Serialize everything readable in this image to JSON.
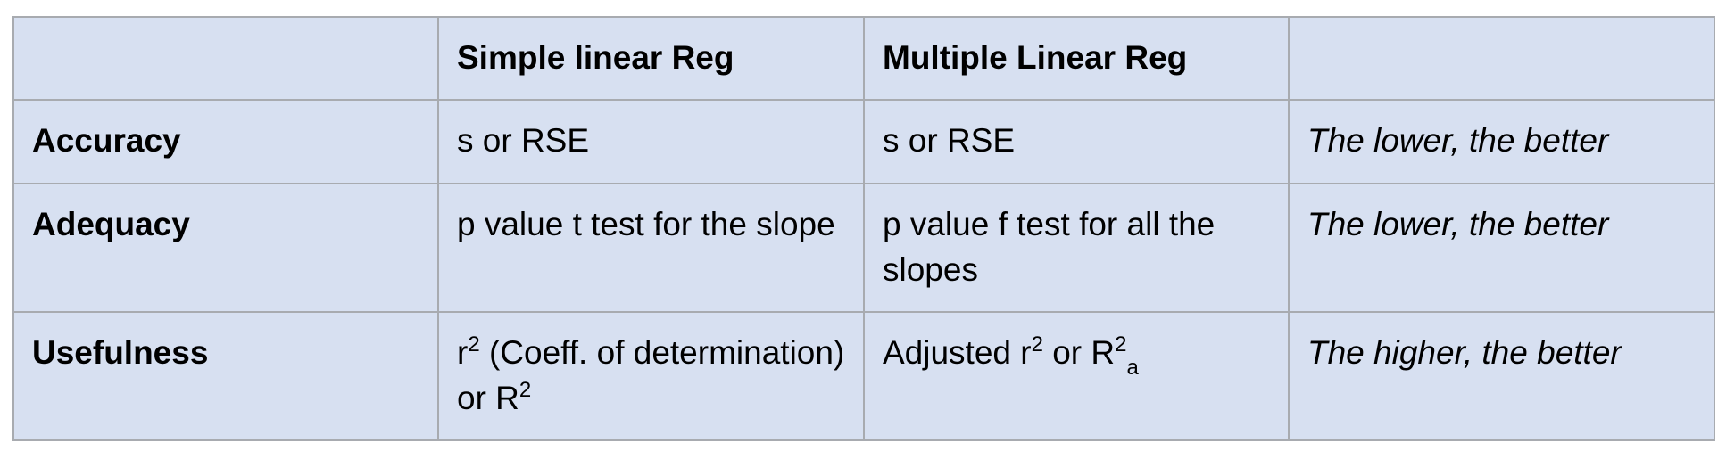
{
  "table": {
    "header": [
      "Simple linear Reg",
      "Multiple Linear Reg"
    ],
    "rows": [
      {
        "label": "Accuracy",
        "simple": [
          "s or RSE"
        ],
        "multiple": [
          "s or RSE"
        ],
        "note": "The lower, the better"
      },
      {
        "label": "Adequacy",
        "simple": [
          "p value t test for the slope"
        ],
        "multiple": [
          "p value f test for all the slopes"
        ],
        "note": "The lower, the better"
      },
      {
        "label": "Usefulness",
        "simple": [
          "r",
          "2",
          " (Coeff. of determination) or R",
          "2"
        ],
        "multiple": [
          "Adjusted r",
          "2",
          " or R",
          "2",
          "a"
        ],
        "note": "The higher, the better"
      }
    ]
  }
}
